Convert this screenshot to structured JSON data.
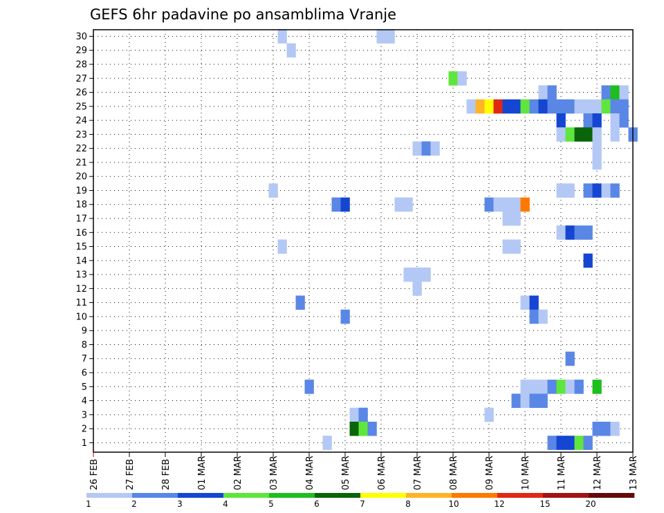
{
  "chart_data": {
    "type": "heatmap",
    "title": "GEFS 6hr padavine po ansamblima Vranje",
    "xlabel": "",
    "ylabel": "",
    "x_ticks": [
      "26 FEB",
      "27 FEB",
      "28 FEB",
      "01 MAR",
      "02 MAR",
      "03 MAR",
      "04 MAR",
      "05 MAR",
      "06 MAR",
      "07 MAR",
      "08 MAR",
      "09 MAR",
      "10 MAR",
      "11 MAR",
      "12 MAR",
      "13 MAR"
    ],
    "xlim": [
      0,
      15
    ],
    "ylim": [
      0,
      30
    ],
    "y_ticks": [
      1,
      2,
      3,
      4,
      5,
      6,
      7,
      8,
      9,
      10,
      11,
      12,
      13,
      14,
      15,
      16,
      17,
      18,
      19,
      20,
      21,
      22,
      23,
      24,
      25,
      26,
      27,
      28,
      29,
      30
    ],
    "x_unit": "days since 26 FEB 00Z, 6-hour steps",
    "grid": true,
    "colorbar": {
      "levels": [
        1,
        2,
        3,
        4,
        5,
        6,
        7,
        8,
        10,
        12,
        15,
        20
      ],
      "colors": [
        "#b4c8f5",
        "#5a87e6",
        "#1446d2",
        "#5fe63c",
        "#1ebe1e",
        "#0a640a",
        "#ffff00",
        "#ffb428",
        "#ff7800",
        "#e12814",
        "#a01414",
        "#640a0a"
      ]
    },
    "cells": [
      {
        "member": 30,
        "t": 5.25,
        "v": 1
      },
      {
        "member": 30,
        "t": 8.0,
        "v": 1
      },
      {
        "member": 30,
        "t": 8.25,
        "v": 1
      },
      {
        "member": 29,
        "t": 5.5,
        "v": 1
      },
      {
        "member": 27,
        "t": 10.0,
        "v": 4
      },
      {
        "member": 27,
        "t": 10.25,
        "v": 1
      },
      {
        "member": 26,
        "t": 12.5,
        "v": 1
      },
      {
        "member": 26,
        "t": 12.75,
        "v": 2
      },
      {
        "member": 26,
        "t": 14.25,
        "v": 2
      },
      {
        "member": 26,
        "t": 14.5,
        "v": 5
      },
      {
        "member": 26,
        "t": 14.75,
        "v": 1
      },
      {
        "member": 25,
        "t": 10.5,
        "v": 1
      },
      {
        "member": 25,
        "t": 10.75,
        "v": 8
      },
      {
        "member": 25,
        "t": 11.0,
        "v": 7
      },
      {
        "member": 25,
        "t": 11.25,
        "v": 12
      },
      {
        "member": 25,
        "t": 11.5,
        "v": 3
      },
      {
        "member": 25,
        "t": 11.75,
        "v": 3
      },
      {
        "member": 25,
        "t": 12.0,
        "v": 4
      },
      {
        "member": 25,
        "t": 12.25,
        "v": 2
      },
      {
        "member": 25,
        "t": 12.5,
        "v": 3
      },
      {
        "member": 25,
        "t": 12.75,
        "v": 2
      },
      {
        "member": 25,
        "t": 13.0,
        "v": 2
      },
      {
        "member": 25,
        "t": 13.25,
        "v": 2
      },
      {
        "member": 25,
        "t": 13.5,
        "v": 1
      },
      {
        "member": 25,
        "t": 13.75,
        "v": 1
      },
      {
        "member": 25,
        "t": 14.0,
        "v": 1
      },
      {
        "member": 25,
        "t": 14.25,
        "v": 4
      },
      {
        "member": 25,
        "t": 14.5,
        "v": 2
      },
      {
        "member": 25,
        "t": 14.75,
        "v": 2
      },
      {
        "member": 24,
        "t": 13.0,
        "v": 3
      },
      {
        "member": 24,
        "t": 13.75,
        "v": 2
      },
      {
        "member": 24,
        "t": 14.0,
        "v": 3
      },
      {
        "member": 24,
        "t": 14.5,
        "v": 1
      },
      {
        "member": 24,
        "t": 14.75,
        "v": 2
      },
      {
        "member": 23,
        "t": 13.0,
        "v": 1
      },
      {
        "member": 23,
        "t": 13.25,
        "v": 4
      },
      {
        "member": 23,
        "t": 13.5,
        "v": 6
      },
      {
        "member": 23,
        "t": 13.75,
        "v": 6
      },
      {
        "member": 23,
        "t": 14.0,
        "v": 1
      },
      {
        "member": 23,
        "t": 14.5,
        "v": 1
      },
      {
        "member": 23,
        "t": 15.0,
        "v": 2
      },
      {
        "member": 22,
        "t": 9.0,
        "v": 1
      },
      {
        "member": 22,
        "t": 9.25,
        "v": 2
      },
      {
        "member": 22,
        "t": 9.5,
        "v": 1
      },
      {
        "member": 22,
        "t": 14.0,
        "v": 1
      },
      {
        "member": 21,
        "t": 14.0,
        "v": 1
      },
      {
        "member": 19,
        "t": 5.0,
        "v": 1
      },
      {
        "member": 19,
        "t": 13.0,
        "v": 1
      },
      {
        "member": 19,
        "t": 13.25,
        "v": 1
      },
      {
        "member": 19,
        "t": 13.75,
        "v": 2
      },
      {
        "member": 19,
        "t": 14.0,
        "v": 3
      },
      {
        "member": 19,
        "t": 14.25,
        "v": 1
      },
      {
        "member": 19,
        "t": 14.5,
        "v": 2
      },
      {
        "member": 18,
        "t": 6.75,
        "v": 2
      },
      {
        "member": 18,
        "t": 7.0,
        "v": 3
      },
      {
        "member": 18,
        "t": 8.5,
        "v": 1
      },
      {
        "member": 18,
        "t": 8.75,
        "v": 1
      },
      {
        "member": 18,
        "t": 11.0,
        "v": 2
      },
      {
        "member": 18,
        "t": 11.25,
        "v": 1
      },
      {
        "member": 18,
        "t": 11.5,
        "v": 1
      },
      {
        "member": 18,
        "t": 11.75,
        "v": 1
      },
      {
        "member": 18,
        "t": 12.0,
        "v": 10
      },
      {
        "member": 17,
        "t": 11.5,
        "v": 1
      },
      {
        "member": 17,
        "t": 11.75,
        "v": 1
      },
      {
        "member": 16,
        "t": 13.0,
        "v": 1
      },
      {
        "member": 16,
        "t": 13.25,
        "v": 3
      },
      {
        "member": 16,
        "t": 13.5,
        "v": 2
      },
      {
        "member": 16,
        "t": 13.75,
        "v": 2
      },
      {
        "member": 15,
        "t": 5.25,
        "v": 1
      },
      {
        "member": 15,
        "t": 11.5,
        "v": 1
      },
      {
        "member": 15,
        "t": 11.75,
        "v": 1
      },
      {
        "member": 14,
        "t": 13.75,
        "v": 3
      },
      {
        "member": 13,
        "t": 8.75,
        "v": 1
      },
      {
        "member": 13,
        "t": 9.0,
        "v": 1
      },
      {
        "member": 13,
        "t": 9.25,
        "v": 1
      },
      {
        "member": 12,
        "t": 9.0,
        "v": 1
      },
      {
        "member": 11,
        "t": 5.75,
        "v": 2
      },
      {
        "member": 11,
        "t": 12.0,
        "v": 1
      },
      {
        "member": 11,
        "t": 12.25,
        "v": 3
      },
      {
        "member": 10,
        "t": 7.0,
        "v": 2
      },
      {
        "member": 10,
        "t": 12.25,
        "v": 2
      },
      {
        "member": 10,
        "t": 12.5,
        "v": 1
      },
      {
        "member": 7,
        "t": 13.25,
        "v": 2
      },
      {
        "member": 5,
        "t": 6.0,
        "v": 2
      },
      {
        "member": 5,
        "t": 12.0,
        "v": 1
      },
      {
        "member": 5,
        "t": 12.25,
        "v": 1
      },
      {
        "member": 5,
        "t": 12.5,
        "v": 1
      },
      {
        "member": 5,
        "t": 12.75,
        "v": 2
      },
      {
        "member": 5,
        "t": 13.0,
        "v": 4
      },
      {
        "member": 5,
        "t": 13.25,
        "v": 1
      },
      {
        "member": 5,
        "t": 13.5,
        "v": 2
      },
      {
        "member": 5,
        "t": 14.0,
        "v": 5
      },
      {
        "member": 4,
        "t": 11.75,
        "v": 2
      },
      {
        "member": 4,
        "t": 12.0,
        "v": 1
      },
      {
        "member": 4,
        "t": 12.25,
        "v": 2
      },
      {
        "member": 4,
        "t": 12.5,
        "v": 2
      },
      {
        "member": 3,
        "t": 7.25,
        "v": 1
      },
      {
        "member": 3,
        "t": 7.5,
        "v": 2
      },
      {
        "member": 3,
        "t": 11.0,
        "v": 1
      },
      {
        "member": 2,
        "t": 7.25,
        "v": 6
      },
      {
        "member": 2,
        "t": 7.5,
        "v": 4
      },
      {
        "member": 2,
        "t": 7.75,
        "v": 2
      },
      {
        "member": 2,
        "t": 14.0,
        "v": 2
      },
      {
        "member": 2,
        "t": 14.25,
        "v": 2
      },
      {
        "member": 2,
        "t": 14.5,
        "v": 1
      },
      {
        "member": 1,
        "t": 6.5,
        "v": 1
      },
      {
        "member": 1,
        "t": 12.75,
        "v": 2
      },
      {
        "member": 1,
        "t": 13.0,
        "v": 3
      },
      {
        "member": 1,
        "t": 13.25,
        "v": 3
      },
      {
        "member": 1,
        "t": 13.5,
        "v": 4
      },
      {
        "member": 1,
        "t": 13.75,
        "v": 2
      }
    ]
  }
}
